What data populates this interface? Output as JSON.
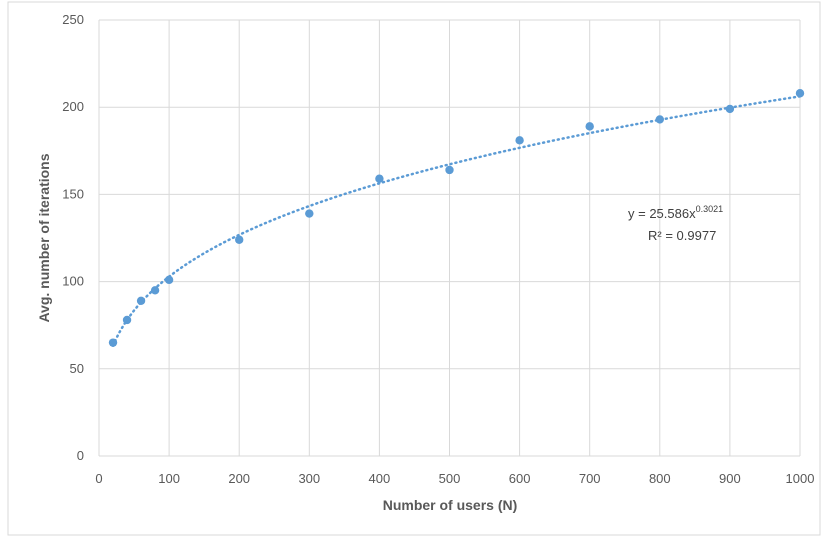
{
  "chart_data": {
    "type": "scatter",
    "title": "",
    "xlabel": "Number of users (N)",
    "ylabel": "Avg. number of iterations",
    "xlim": [
      0,
      1000
    ],
    "ylim": [
      0,
      250
    ],
    "x_ticks": [
      "0",
      "100",
      "200",
      "300",
      "400",
      "500",
      "600",
      "700",
      "800",
      "900",
      "1000"
    ],
    "y_ticks": [
      "0",
      "50",
      "100",
      "150",
      "200",
      "250"
    ],
    "grid": true,
    "legend": "none",
    "series": [
      {
        "color": "#5b9bd5",
        "points": [
          {
            "x": 20,
            "y": 65
          },
          {
            "x": 40,
            "y": 78
          },
          {
            "x": 60,
            "y": 89
          },
          {
            "x": 80,
            "y": 95
          },
          {
            "x": 100,
            "y": 101
          },
          {
            "x": 200,
            "y": 124
          },
          {
            "x": 300,
            "y": 139
          },
          {
            "x": 400,
            "y": 159
          },
          {
            "x": 500,
            "y": 164
          },
          {
            "x": 600,
            "y": 181
          },
          {
            "x": 700,
            "y": 189
          },
          {
            "x": 800,
            "y": 193
          },
          {
            "x": 900,
            "y": 199
          },
          {
            "x": 1000,
            "y": 208
          }
        ]
      }
    ],
    "trendline": {
      "type": "power",
      "coefficient": 25.586,
      "exponent": 0.3021,
      "style": "dotted",
      "color": "#5b9bd5"
    },
    "annotations": {
      "equation_prefix": "y = 25.586x",
      "equation_exponent": "0.3021",
      "r_squared_label": "R² = 0.9977"
    }
  },
  "colors": {
    "gridline": "#d9d9d9",
    "border": "#d9d9d9",
    "text": "#595959"
  }
}
